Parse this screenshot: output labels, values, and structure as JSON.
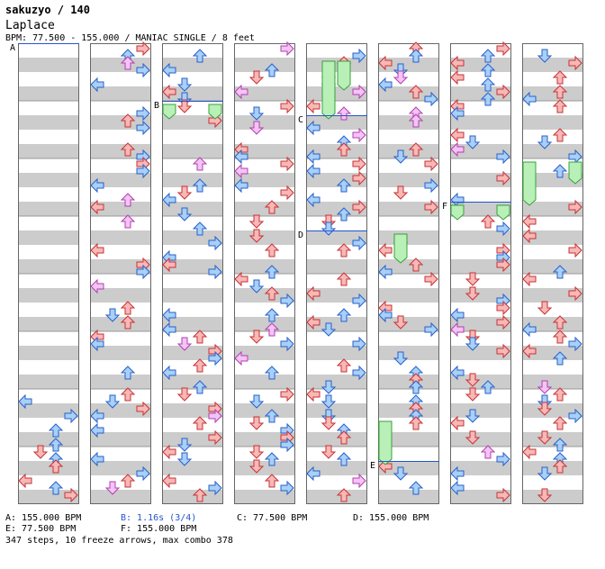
{
  "header": {
    "title": "sakuzyo / 140",
    "song": "Laplace",
    "bpm_info": "BPM: 77.500 - 155.000 / MANIAC SINGLE / 8 feet"
  },
  "chart_data": {
    "type": "step-chart",
    "columns": 8,
    "lanes": [
      "left",
      "down",
      "up",
      "right"
    ],
    "section_markers": [
      {
        "label": "A",
        "column": 0,
        "measure": 0
      },
      {
        "label": "B",
        "column": 2,
        "measure": 1
      },
      {
        "label": "C",
        "column": 4,
        "measure": 1.25
      },
      {
        "label": "D",
        "column": 4,
        "measure": 3.25
      },
      {
        "label": "E",
        "column": 5,
        "measure": 7.25
      },
      {
        "label": "F",
        "column": 6,
        "measure": 2.75
      }
    ]
  },
  "footer": {
    "row1": [
      "A: 155.000 BPM",
      "B: 1.16s (3/4)",
      "C: 77.500 BPM",
      "D: 155.000 BPM"
    ],
    "row2": [
      "E: 77.500 BPM",
      "F: 155.000 BPM"
    ],
    "stats": "347 steps, 10 freeze arrows, max combo 378"
  }
}
